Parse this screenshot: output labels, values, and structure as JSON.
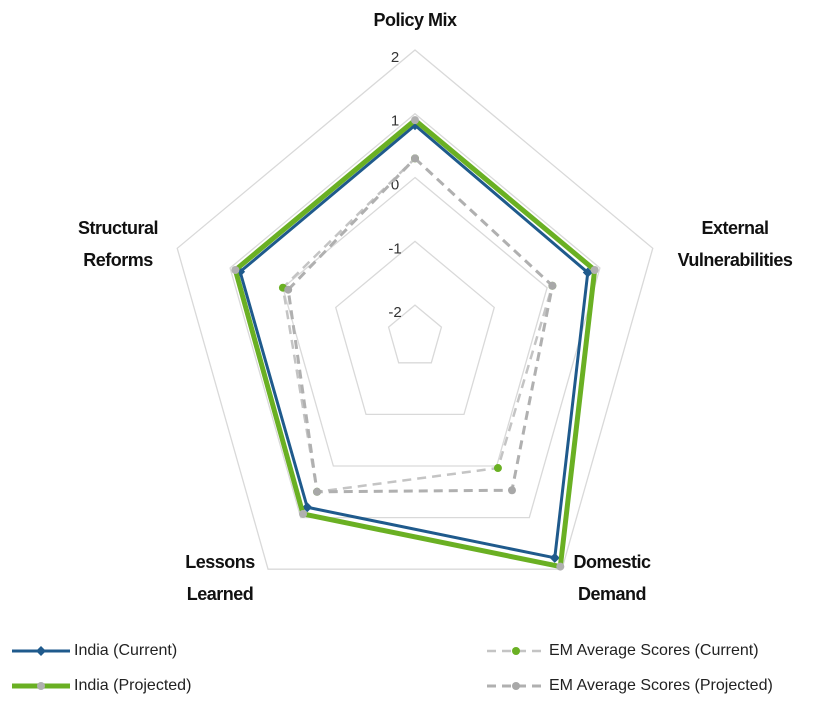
{
  "chart_data": {
    "type": "radar",
    "categories": [
      "Policy Mix",
      "External Vulnerabilities",
      "Domestic Demand",
      "Lessons Learned",
      "Structural Reforms"
    ],
    "ylim": [
      -2.5,
      2
    ],
    "yticks": [
      -2,
      -1,
      0,
      1,
      2
    ],
    "grid": true,
    "series": [
      {
        "name": "India (Current)",
        "color": "#1f5a8c",
        "marker_color": "#1f5a8c",
        "marker": "diamond",
        "dash": false,
        "width": 3,
        "values": [
          0.82,
          0.77,
          1.78,
          0.8,
          0.81
        ]
      },
      {
        "name": "India (Projected)",
        "color": "#6ab023",
        "marker_color": "#b0b0b0",
        "marker": "circle",
        "dash": false,
        "width": 5,
        "values": [
          0.9,
          0.9,
          1.95,
          0.93,
          0.9
        ]
      },
      {
        "name": "EM Average Scores (Current)",
        "color": "#c4c4c4",
        "marker_color": "#6ab023",
        "marker": "circle",
        "dash": true,
        "width": 2.5,
        "values": [
          0.3,
          0.1,
          0.04,
          0.5,
          0
        ]
      },
      {
        "name": "EM Average Scores (Projected)",
        "color": "#b0b0b0",
        "marker_color": "#a8a8a8",
        "marker": "circle",
        "dash": true,
        "width": 3,
        "values": [
          0.3,
          0.1,
          0.47,
          0.5,
          -0.1
        ]
      }
    ],
    "legend": "bottom"
  }
}
